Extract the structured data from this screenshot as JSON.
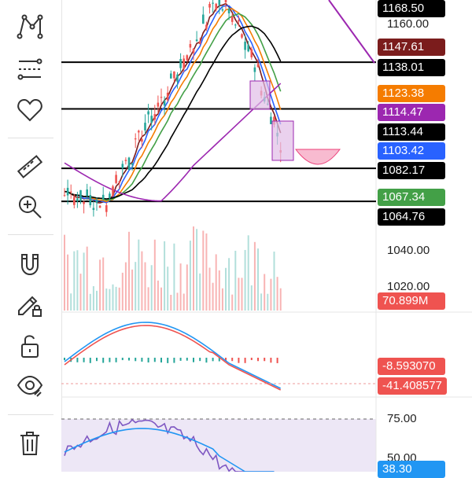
{
  "toolbar": {
    "items": [
      {
        "name": "pattern-tool-icon"
      },
      {
        "name": "fib-tool-icon"
      },
      {
        "name": "favorites-heart-icon"
      },
      {
        "name": "ruler-measure-icon"
      },
      {
        "name": "zoom-in-icon"
      },
      {
        "name": "magnet-icon"
      },
      {
        "name": "drawing-lock-pencil-icon"
      },
      {
        "name": "unlock-icon"
      },
      {
        "name": "visibility-eye-icon"
      },
      {
        "name": "trash-icon"
      }
    ]
  },
  "price_scale": {
    "ticks": [
      "1160.00",
      "1040.00",
      "1020.00"
    ],
    "labels": [
      {
        "text": "1168.50",
        "bg": "#000000",
        "fg": "#ffffff"
      },
      {
        "text": "1147.61",
        "bg": "#7b1c1c",
        "fg": "#ffffff"
      },
      {
        "text": "1138.01",
        "bg": "#000000",
        "fg": "#ffffff"
      },
      {
        "text": "1123.38",
        "bg": "#f57c00",
        "fg": "#ffffff"
      },
      {
        "text": "1114.47",
        "bg": "#9c27b0",
        "fg": "#ffffff"
      },
      {
        "text": "1113.44",
        "bg": "#000000",
        "fg": "#ffffff"
      },
      {
        "text": "1103.42",
        "bg": "#2962ff",
        "fg": "#ffffff"
      },
      {
        "text": "1082.17",
        "bg": "#000000",
        "fg": "#ffffff"
      },
      {
        "text": "1067.34",
        "bg": "#43a047",
        "fg": "#ffffff"
      },
      {
        "text": "1064.76",
        "bg": "#000000",
        "fg": "#ffffff"
      }
    ],
    "volume_label": {
      "text": "70.899M",
      "bg": "#ef5350",
      "fg": "#ffffff"
    }
  },
  "macd": {
    "labels": [
      {
        "text": "-8.593070",
        "bg": "#ef5350",
        "fg": "#ffffff"
      },
      {
        "text": "-41.408577",
        "bg": "#ef5350",
        "fg": "#ffffff"
      }
    ]
  },
  "rsi": {
    "tick": "75.00",
    "tick2": "50.00",
    "label": {
      "text": "38.30",
      "bg": "#2196f3",
      "fg": "#ffffff"
    }
  },
  "colors": {
    "up": "#26a69a",
    "down": "#ef5350",
    "ma_blue": "#2962ff",
    "ma_orange": "#f57c00",
    "ma_green": "#43a047",
    "ma_black": "#000000",
    "ma_purple": "#9c27b0",
    "ma_darkred": "#7b1c1c",
    "rsi_band": "#ede7f6"
  }
}
